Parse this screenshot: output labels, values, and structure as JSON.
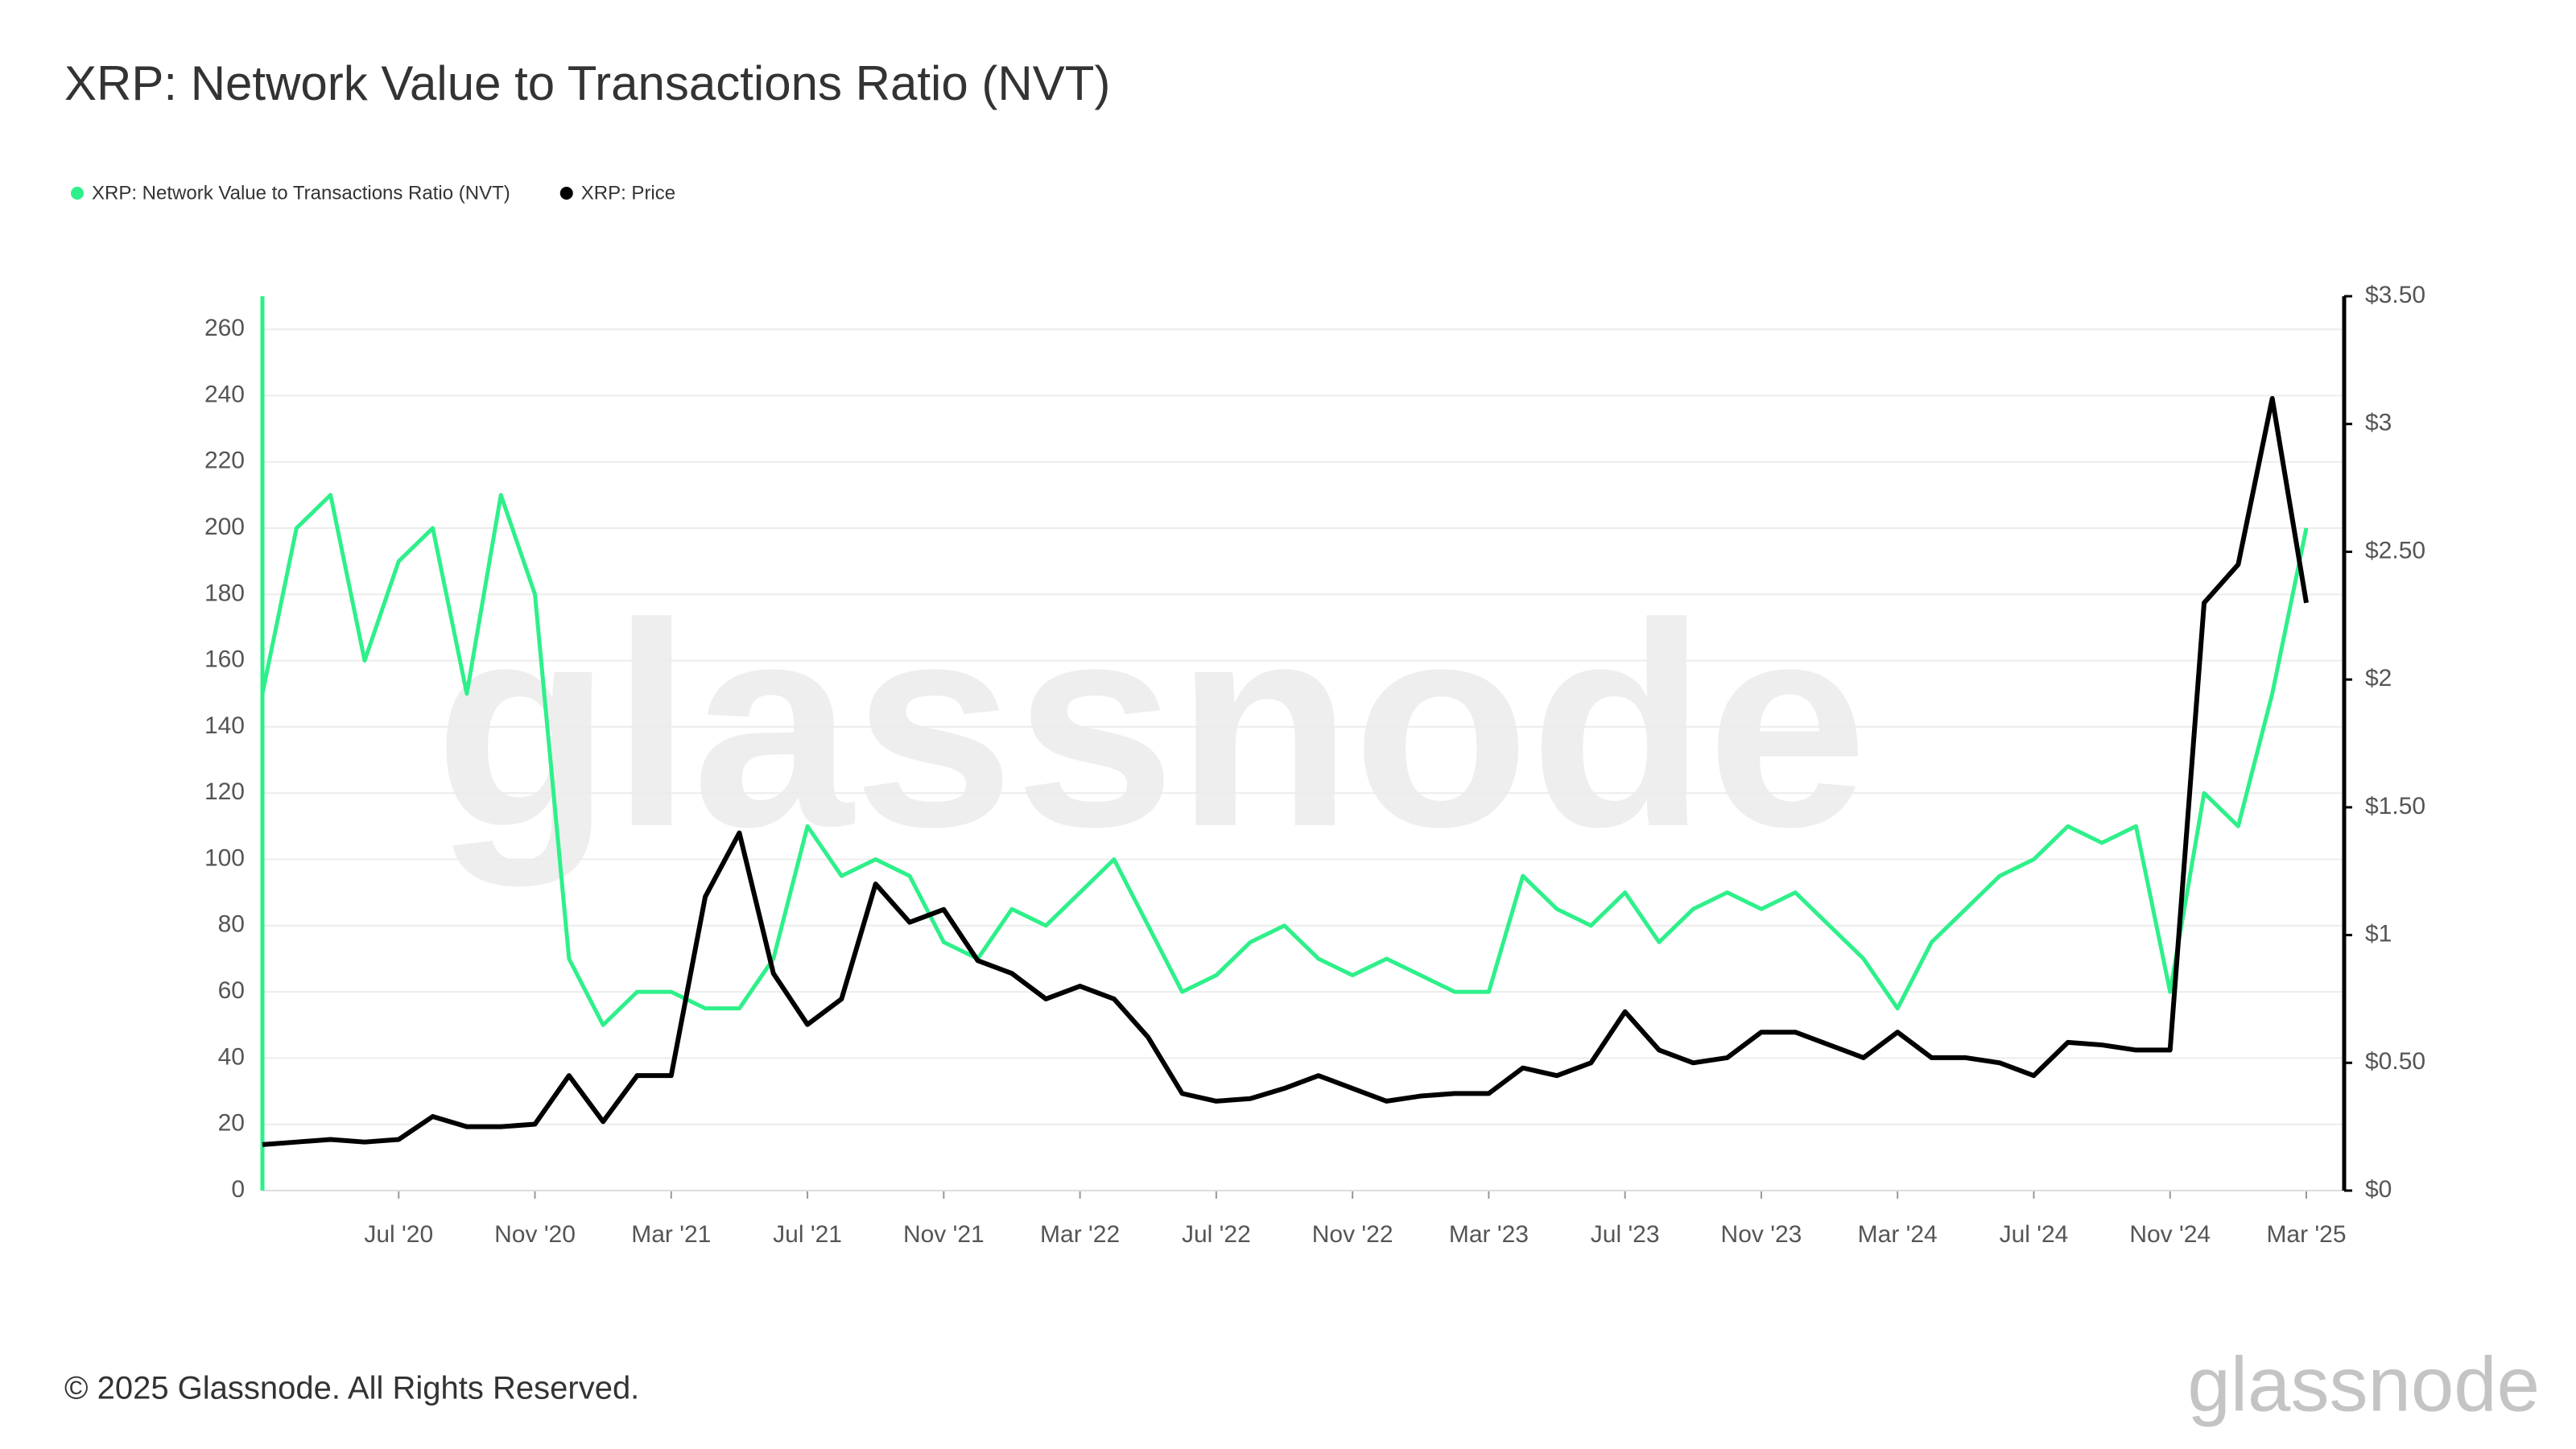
{
  "chart_data": {
    "type": "line",
    "title": "XRP: Network Value to Transactions Ratio (NVT)",
    "footer": "© 2025 Glassnode. All Rights Reserved.",
    "watermark": "glassnode",
    "x": [
      "2020-03",
      "2020-04",
      "2020-05",
      "2020-06",
      "2020-07",
      "2020-08",
      "2020-09",
      "2020-10",
      "2020-11",
      "2020-12",
      "2021-01",
      "2021-02",
      "2021-03",
      "2021-04",
      "2021-05",
      "2021-06",
      "2021-07",
      "2021-08",
      "2021-09",
      "2021-10",
      "2021-11",
      "2021-12",
      "2022-01",
      "2022-02",
      "2022-03",
      "2022-04",
      "2022-05",
      "2022-06",
      "2022-07",
      "2022-08",
      "2022-09",
      "2022-10",
      "2022-11",
      "2022-12",
      "2023-01",
      "2023-02",
      "2023-03",
      "2023-04",
      "2023-05",
      "2023-06",
      "2023-07",
      "2023-08",
      "2023-09",
      "2023-10",
      "2023-11",
      "2023-12",
      "2024-01",
      "2024-02",
      "2024-03",
      "2024-04",
      "2024-05",
      "2024-06",
      "2024-07",
      "2024-08",
      "2024-09",
      "2024-10",
      "2024-11",
      "2024-12",
      "2025-01",
      "2025-02",
      "2025-03"
    ],
    "series": [
      {
        "name": "XRP: Network Value to Transactions Ratio (NVT)",
        "color": "#2ef08a",
        "values": [
          150,
          200,
          210,
          160,
          190,
          200,
          150,
          210,
          180,
          70,
          50,
          60,
          60,
          55,
          55,
          70,
          110,
          95,
          100,
          95,
          75,
          70,
          85,
          80,
          90,
          100,
          80,
          60,
          65,
          75,
          80,
          70,
          65,
          70,
          65,
          60,
          60,
          95,
          85,
          80,
          90,
          75,
          85,
          90,
          85,
          90,
          80,
          70,
          55,
          75,
          85,
          95,
          100,
          110,
          105,
          110,
          60,
          120,
          110,
          150,
          200
        ]
      },
      {
        "name": "XRP: Price",
        "color": "#000000",
        "axis": "y2",
        "values": [
          0.18,
          0.19,
          0.2,
          0.19,
          0.2,
          0.29,
          0.25,
          0.25,
          0.26,
          0.45,
          0.27,
          0.45,
          0.45,
          1.15,
          1.4,
          0.85,
          0.65,
          0.75,
          1.2,
          1.05,
          1.1,
          0.9,
          0.85,
          0.75,
          0.8,
          0.75,
          0.6,
          0.38,
          0.35,
          0.36,
          0.4,
          0.45,
          0.4,
          0.35,
          0.37,
          0.38,
          0.38,
          0.48,
          0.45,
          0.5,
          0.7,
          0.55,
          0.5,
          0.52,
          0.62,
          0.62,
          0.57,
          0.52,
          0.62,
          0.52,
          0.52,
          0.5,
          0.45,
          0.58,
          0.57,
          0.55,
          0.55,
          2.3,
          2.45,
          3.1,
          2.3
        ]
      }
    ],
    "xlim": [
      "2020-03",
      "2025-03"
    ],
    "xticks": [
      {
        "value": "2020-07",
        "label": "Jul '20"
      },
      {
        "value": "2020-11",
        "label": "Nov '20"
      },
      {
        "value": "2021-03",
        "label": "Mar '21"
      },
      {
        "value": "2021-07",
        "label": "Jul '21"
      },
      {
        "value": "2021-11",
        "label": "Nov '21"
      },
      {
        "value": "2022-03",
        "label": "Mar '22"
      },
      {
        "value": "2022-07",
        "label": "Jul '22"
      },
      {
        "value": "2022-11",
        "label": "Nov '22"
      },
      {
        "value": "2023-03",
        "label": "Mar '23"
      },
      {
        "value": "2023-07",
        "label": "Jul '23"
      },
      {
        "value": "2023-11",
        "label": "Nov '23"
      },
      {
        "value": "2024-03",
        "label": "Mar '24"
      },
      {
        "value": "2024-07",
        "label": "Jul '24"
      },
      {
        "value": "2024-11",
        "label": "Nov '24"
      },
      {
        "value": "2025-03",
        "label": "Mar '25"
      }
    ],
    "ylim": [
      0,
      270
    ],
    "yticks": [
      0,
      20,
      40,
      60,
      80,
      100,
      120,
      140,
      160,
      180,
      200,
      220,
      240,
      260
    ],
    "y2lim": [
      0,
      3.5
    ],
    "y2ticks": [
      {
        "value": 0,
        "label": "$0"
      },
      {
        "value": 0.5,
        "label": "$0.50"
      },
      {
        "value": 1,
        "label": "$1"
      },
      {
        "value": 1.5,
        "label": "$1.50"
      },
      {
        "value": 2,
        "label": "$2"
      },
      {
        "value": 2.5,
        "label": "$2.50"
      },
      {
        "value": 3,
        "label": "$3"
      },
      {
        "value": 3.5,
        "label": "$3.50"
      }
    ],
    "grid": true
  }
}
